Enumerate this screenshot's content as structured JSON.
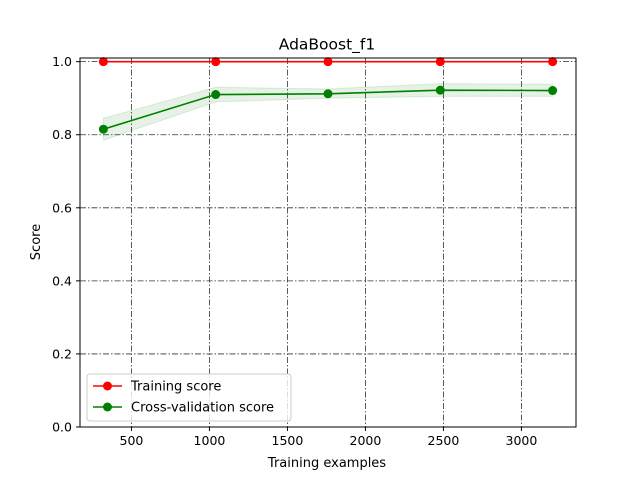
{
  "chart_data": {
    "type": "line",
    "title": "AdaBoost_f1",
    "xlabel": "Training examples",
    "ylabel": "Score",
    "xlim": [
      170,
      3350
    ],
    "ylim": [
      0.0,
      1.0
    ],
    "xticks": [
      500,
      1000,
      1500,
      2000,
      2500,
      3000
    ],
    "yticks": [
      0.0,
      0.2,
      0.4,
      0.6,
      0.8,
      1.0
    ],
    "xtick_labels": [
      "500",
      "1000",
      "1500",
      "2000",
      "2500",
      "3000"
    ],
    "ytick_labels": [
      "0.0",
      "0.2",
      "0.4",
      "0.6",
      "0.8",
      "1.0"
    ],
    "grid": true,
    "legend_position": "lower-left",
    "x": [
      320,
      1040,
      1760,
      2480,
      3200
    ],
    "series": [
      {
        "name": "Training score",
        "color": "#ff0000",
        "values": [
          1.0,
          1.0,
          1.0,
          1.0,
          1.0
        ],
        "band_lower": [
          1.0,
          1.0,
          1.0,
          1.0,
          1.0
        ],
        "band_upper": [
          1.0,
          1.0,
          1.0,
          1.0,
          1.0
        ]
      },
      {
        "name": "Cross-validation score",
        "color": "#008000",
        "values": [
          0.815,
          0.91,
          0.912,
          0.922,
          0.921
        ],
        "band_lower": [
          0.785,
          0.89,
          0.9,
          0.905,
          0.905
        ],
        "band_upper": [
          0.845,
          0.93,
          0.925,
          0.94,
          0.938
        ]
      }
    ]
  }
}
